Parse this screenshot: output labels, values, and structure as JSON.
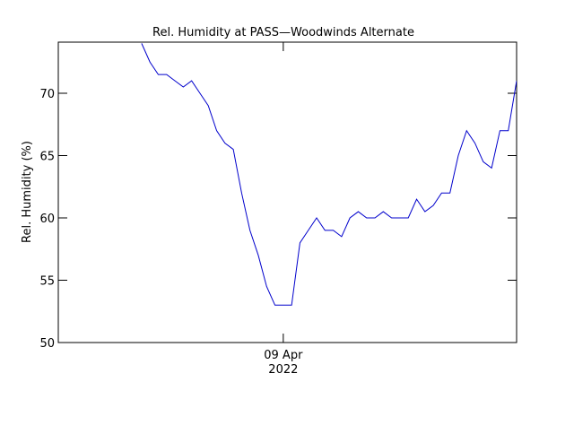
{
  "chart_data": {
    "type": "line",
    "title": "Rel. Humidity at PASS—Woodwinds Alternate",
    "ylabel": "Rel. Humidity (%)",
    "categories": [
      null,
      null,
      null,
      null,
      null,
      null,
      null,
      null,
      null,
      null,
      null,
      null,
      null,
      null,
      null,
      null,
      null,
      null,
      null,
      null,
      null,
      null,
      null,
      null,
      null,
      null,
      null,
      "09 Apr\n2022",
      null,
      null,
      null,
      null,
      null,
      null,
      null,
      null,
      null,
      null,
      null,
      null,
      null,
      null,
      null,
      null,
      null,
      null,
      null,
      null,
      null,
      null,
      null,
      null,
      null,
      null,
      null,
      null
    ],
    "series": [
      {
        "name": "Rel. Humidity",
        "color": "#0000cc",
        "values": [
          null,
          null,
          null,
          null,
          null,
          null,
          null,
          null,
          null,
          null,
          74,
          72.5,
          71.5,
          71.5,
          71,
          70.5,
          71,
          70,
          69,
          67,
          66,
          65.5,
          62,
          59,
          57,
          54.5,
          53,
          53,
          53,
          58,
          59,
          60,
          59,
          59,
          58.5,
          60,
          60.5,
          60,
          60,
          60.5,
          60,
          60,
          60,
          61.5,
          60.5,
          61,
          62,
          62,
          65,
          67,
          66,
          64.5,
          64,
          67,
          67,
          71
        ]
      }
    ],
    "ylim": [
      50,
      74.1
    ],
    "yticks": [
      50,
      55,
      60,
      65,
      70
    ]
  }
}
